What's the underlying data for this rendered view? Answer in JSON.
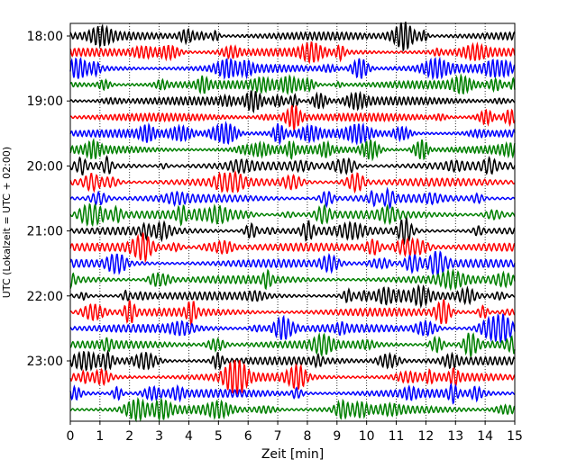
{
  "chart_data": {
    "type": "line",
    "title": "",
    "xlabel": "Zeit  [min]",
    "ylabel": "UTC (Lokalzeit = UTC + 02:00)",
    "xlim": [
      0,
      15
    ],
    "x_ticks": [
      0,
      1,
      2,
      3,
      4,
      5,
      6,
      7,
      8,
      9,
      10,
      11,
      12,
      13,
      14,
      15
    ],
    "y_tick_labels": [
      "18:00",
      "19:00",
      "20:00",
      "21:00",
      "22:00",
      "23:00"
    ],
    "grid": "vertical dotted lines at each minute",
    "trace_colors_cycle": [
      "#000000",
      "#ff0000",
      "#0000ff",
      "#008000"
    ],
    "series": [
      {
        "start": "18:00",
        "color": "#000000"
      },
      {
        "start": "18:15",
        "color": "#ff0000"
      },
      {
        "start": "18:30",
        "color": "#0000ff"
      },
      {
        "start": "18:45",
        "color": "#008000"
      },
      {
        "start": "19:00",
        "color": "#000000"
      },
      {
        "start": "19:15",
        "color": "#ff0000"
      },
      {
        "start": "19:30",
        "color": "#0000ff"
      },
      {
        "start": "19:45",
        "color": "#008000"
      },
      {
        "start": "20:00",
        "color": "#000000"
      },
      {
        "start": "20:15",
        "color": "#ff0000"
      },
      {
        "start": "20:30",
        "color": "#0000ff"
      },
      {
        "start": "20:45",
        "color": "#008000"
      },
      {
        "start": "21:00",
        "color": "#000000"
      },
      {
        "start": "21:15",
        "color": "#ff0000"
      },
      {
        "start": "21:30",
        "color": "#0000ff"
      },
      {
        "start": "21:45",
        "color": "#008000"
      },
      {
        "start": "22:00",
        "color": "#000000"
      },
      {
        "start": "22:15",
        "color": "#ff0000"
      },
      {
        "start": "22:30",
        "color": "#0000ff"
      },
      {
        "start": "22:45",
        "color": "#008000"
      },
      {
        "start": "23:00",
        "color": "#000000"
      },
      {
        "start": "23:15",
        "color": "#ff0000"
      },
      {
        "start": "23:30",
        "color": "#0000ff"
      },
      {
        "start": "23:45",
        "color": "#008000"
      }
    ]
  }
}
